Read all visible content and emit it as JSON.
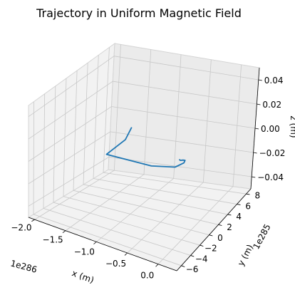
{
  "chart_data": {
    "type": "line",
    "projection": "3d",
    "title": "Trajectory in Uniform Magnetic Field",
    "xlabel": "x (m)",
    "ylabel": "y (m)",
    "zlabel": "z (m)",
    "x_offset_text": "1e286",
    "y_offset_text": "1e285",
    "x_ticks": [
      "−2.0",
      "−1.5",
      "−1.0",
      "−0.5",
      "0.0"
    ],
    "y_ticks": [
      "−6",
      "−4",
      "−2",
      "0",
      "2",
      "4",
      "6",
      "8"
    ],
    "z_ticks": [
      "−0.04",
      "−0.02",
      "0.00",
      "0.02",
      "0.04"
    ],
    "xlim": [
      -2.1,
      0.3
    ],
    "ylim": [
      -7,
      9
    ],
    "zlim": [
      -0.05,
      0.05
    ],
    "grid": true,
    "series": [
      {
        "color": "#1f77b4",
        "points": [
          {
            "x": -0.35,
            "y": 2.0,
            "z": 0.0
          },
          {
            "x": -0.32,
            "y": 1.9,
            "z": 0.0
          },
          {
            "x": -0.29,
            "y": 2.05,
            "z": 0.0
          },
          {
            "x": -0.26,
            "y": 2.1,
            "z": 0.0
          },
          {
            "x": -0.24,
            "y": 1.6,
            "z": 0.0
          },
          {
            "x": -0.3,
            "y": 0.5,
            "z": 0.0
          },
          {
            "x": -0.62,
            "y": -0.4,
            "z": 0.0
          },
          {
            "x": -1.35,
            "y": -0.5,
            "z": 0.0
          },
          {
            "x": -1.36,
            "y": 3.5,
            "z": 0.0
          },
          {
            "x": -1.5,
            "y": 6.5,
            "z": 0.0
          }
        ]
      }
    ]
  }
}
